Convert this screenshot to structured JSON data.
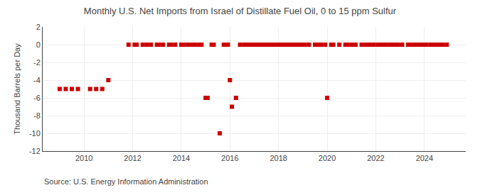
{
  "chart_data": {
    "type": "scatter",
    "title": "Monthly U.S. Net Imports from Israel of Distillate Fuel Oil, 0 to 15 ppm Sulfur",
    "ylabel": "Thousand Barrels per Day",
    "annotations": [
      "Source: U.S. Energy Information Administration"
    ],
    "x": [
      2009.0,
      2009.25,
      2009.5,
      2009.75,
      2010.25,
      2010.5,
      2010.75,
      2011.0,
      2011.833,
      2012.083,
      2012.167,
      2012.417,
      2012.583,
      2012.75,
      2013.0,
      2013.083,
      2013.25,
      2013.5,
      2013.583,
      2013.75,
      2014.0,
      2014.083,
      2014.25,
      2014.333,
      2014.5,
      2014.583,
      2014.75,
      2014.833,
      2015.0,
      2015.083,
      2015.25,
      2015.333,
      2015.583,
      2015.75,
      2015.833,
      2015.917,
      2016.0,
      2016.083,
      2016.25,
      2016.417,
      2016.583,
      2016.667,
      2016.75,
      2016.833,
      2016.917,
      2017.0,
      2017.083,
      2017.167,
      2017.25,
      2017.417,
      2017.5,
      2017.583,
      2017.667,
      2017.75,
      2017.833,
      2017.917,
      2018.0,
      2018.083,
      2018.167,
      2018.25,
      2018.333,
      2018.5,
      2018.583,
      2018.667,
      2018.75,
      2018.833,
      2018.917,
      2019.083,
      2019.25,
      2019.5,
      2019.667,
      2019.75,
      2019.917,
      2020.0,
      2020.167,
      2020.25,
      2020.5,
      2020.75,
      2020.833,
      2021.0,
      2021.083,
      2021.167,
      2021.417,
      2021.583,
      2021.75,
      2021.917,
      2022.083,
      2022.25,
      2022.417,
      2022.583,
      2022.667,
      2022.75,
      2022.917,
      2023.083,
      2023.333,
      2023.5,
      2023.583,
      2023.667,
      2023.75,
      2023.833,
      2023.917,
      2024.0,
      2024.083,
      2024.25,
      2024.333,
      2024.5,
      2024.583,
      2024.667,
      2024.75,
      2024.917
    ],
    "values": [
      -5.0,
      -5.0,
      -5.0,
      -5.0,
      -5.0,
      -5.0,
      -5.0,
      -4.0,
      0.0,
      0.0,
      0.0,
      0.0,
      0.0,
      0.0,
      0.0,
      0.0,
      0.0,
      0.0,
      0.0,
      0.0,
      0.0,
      0.0,
      0.0,
      0.0,
      0.0,
      0.0,
      0.0,
      0.0,
      -6.0,
      -6.0,
      0.0,
      0.0,
      -10.0,
      0.0,
      0.0,
      0.0,
      -4.0,
      -7.0,
      -6.0,
      0.0,
      0.0,
      0.0,
      0.0,
      0.0,
      0.0,
      0.0,
      0.0,
      0.0,
      0.0,
      0.0,
      0.0,
      0.0,
      0.0,
      0.0,
      0.0,
      0.0,
      0.0,
      0.0,
      0.0,
      0.0,
      0.0,
      0.0,
      0.0,
      0.0,
      0.0,
      0.0,
      0.0,
      0.0,
      0.0,
      0.0,
      0.0,
      0.0,
      0.0,
      -6.0,
      0.0,
      0.0,
      0.0,
      0.0,
      0.0,
      0.0,
      0.0,
      0.0,
      0.0,
      0.0,
      0.0,
      0.0,
      0.0,
      0.0,
      0.0,
      0.0,
      0.0,
      0.0,
      0.0,
      0.0,
      0.0,
      0.0,
      0.0,
      0.0,
      0.0,
      0.0,
      0.0,
      0.0,
      0.0,
      0.0,
      0.0,
      0.0,
      0.0,
      0.0,
      0.0,
      0.0
    ],
    "color": "#cc0000",
    "marker": "square",
    "xlim": [
      2008.3,
      2025.7
    ],
    "xticks": [
      2010,
      2012,
      2014,
      2016,
      2018,
      2020,
      2022,
      2024
    ],
    "ylim": [
      -12,
      2
    ],
    "yticks": [
      2,
      0,
      -2,
      -4,
      -6,
      -8,
      -10,
      -12
    ],
    "grid": true
  }
}
